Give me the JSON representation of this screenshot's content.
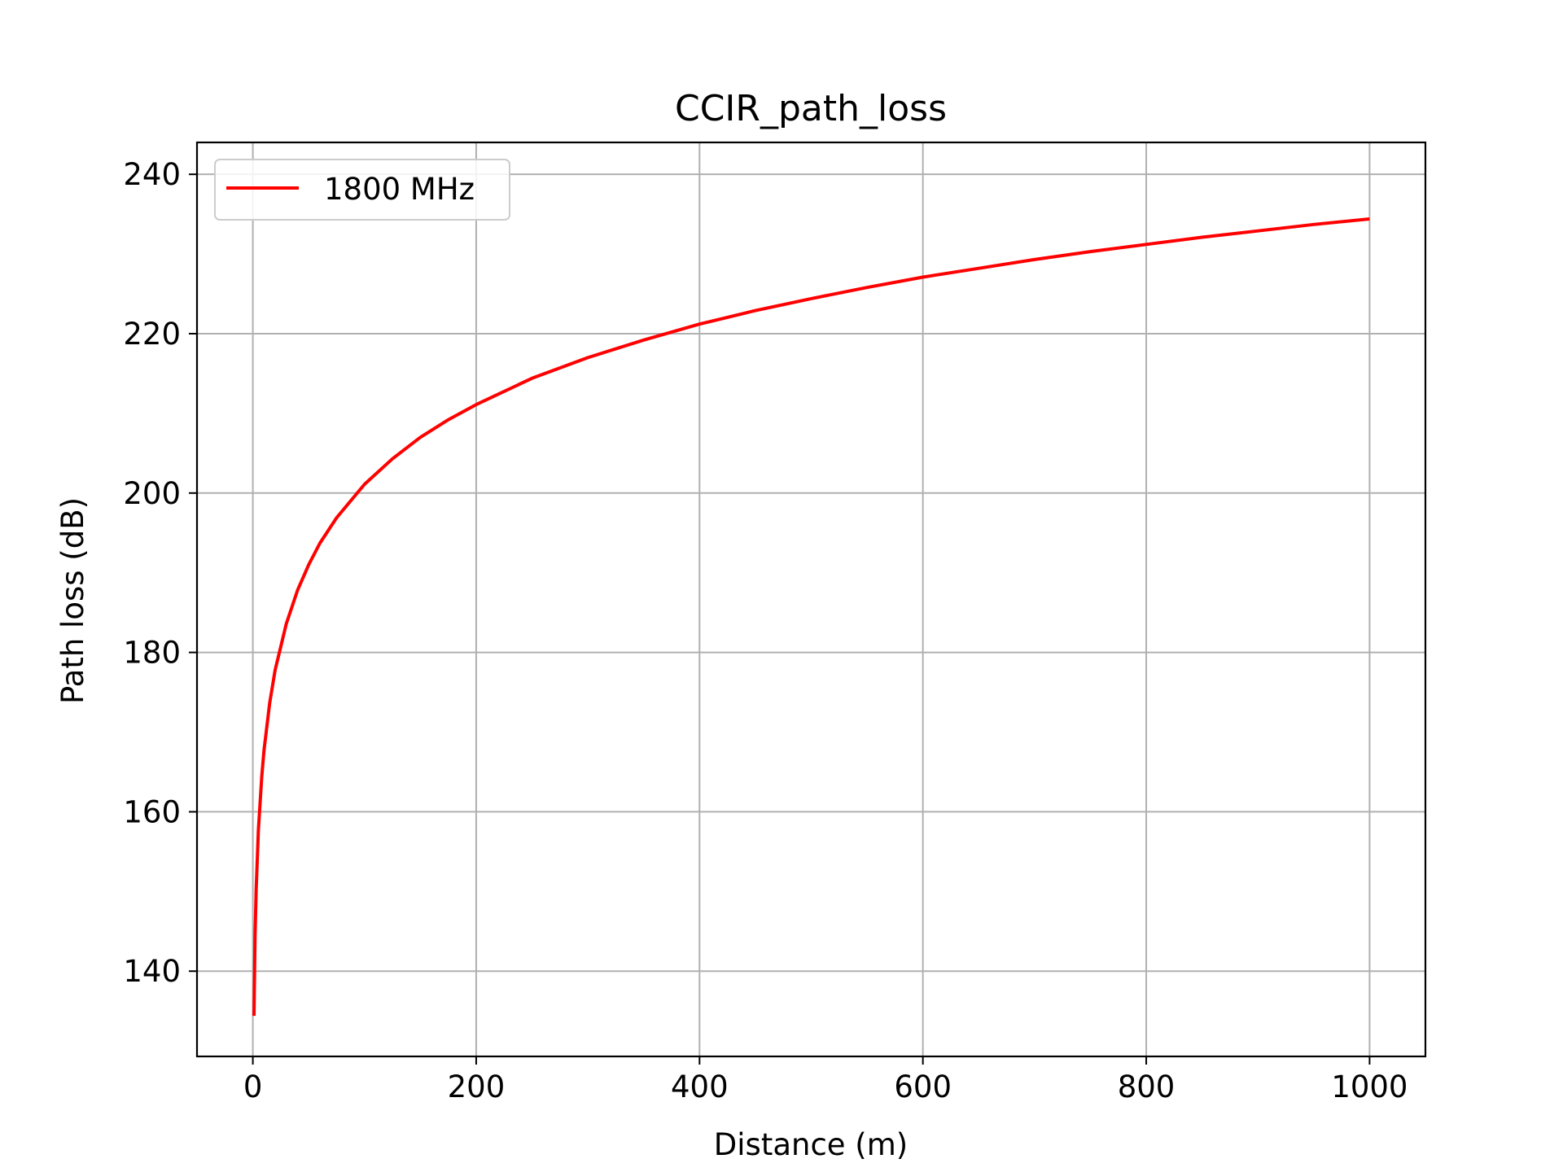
{
  "chart_data": {
    "type": "line",
    "title": "CCIR_path_loss",
    "xlabel": "Distance (m)",
    "ylabel": "Path loss (dB)",
    "xlim": [
      -50,
      1050
    ],
    "ylim": [
      129.3,
      244.0
    ],
    "xticks": [
      0,
      200,
      400,
      600,
      800,
      1000
    ],
    "yticks": [
      140,
      160,
      180,
      200,
      220,
      240
    ],
    "grid": true,
    "legend_position": "top-left",
    "series": [
      {
        "name": "1800 MHz",
        "color": "#ff0000",
        "x": [
          1,
          2,
          3,
          5,
          8,
          10,
          15,
          20,
          30,
          40,
          50,
          60,
          75,
          100,
          125,
          150,
          175,
          200,
          250,
          300,
          350,
          400,
          450,
          500,
          550,
          600,
          650,
          700,
          750,
          800,
          850,
          900,
          950,
          1000
        ],
        "y": [
          134.4,
          144.4,
          150.3,
          157.7,
          164.5,
          167.7,
          173.6,
          177.8,
          183.6,
          187.8,
          191.0,
          193.7,
          196.9,
          201.1,
          204.3,
          207.0,
          209.2,
          211.1,
          214.4,
          217.0,
          219.2,
          221.2,
          222.9,
          224.4,
          225.8,
          227.1,
          228.2,
          229.3,
          230.3,
          231.2,
          232.1,
          232.9,
          233.7,
          234.4
        ]
      }
    ]
  }
}
